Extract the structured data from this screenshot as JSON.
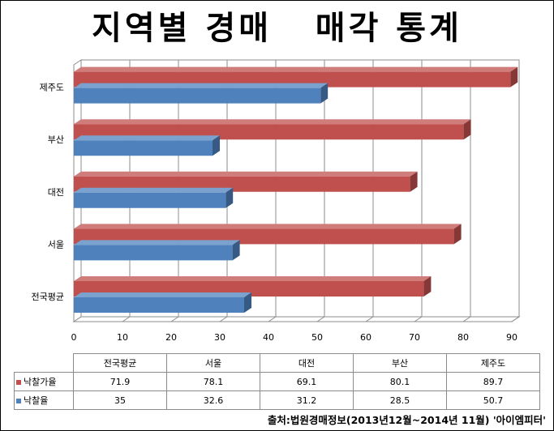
{
  "title": "지역별 경매   매각 통계",
  "source": "출처:법원경매정보(2013년12월~2014년 11월) '아이엠피터'",
  "colors": {
    "red": "#c0504d",
    "blue": "#4f81bd"
  },
  "chart_data": {
    "type": "bar",
    "orientation": "horizontal",
    "style": "3d",
    "title": "지역별 경매   매각 통계",
    "categories": [
      "전국평균",
      "서울",
      "대전",
      "부산",
      "제주도"
    ],
    "series": [
      {
        "name": "낙찰가율",
        "color": "#c0504d",
        "values": [
          71.9,
          78.1,
          69.1,
          80.1,
          89.7
        ]
      },
      {
        "name": "낙찰율",
        "color": "#4f81bd",
        "values": [
          35,
          32.6,
          31.2,
          28.5,
          50.7
        ]
      }
    ],
    "xlim": [
      0,
      90
    ],
    "xticks": [
      "0",
      "10",
      "20",
      "30",
      "40",
      "50",
      "60",
      "70",
      "80",
      "90"
    ],
    "grid": true,
    "legend": "data-table"
  },
  "table": {
    "headers": [
      "전국평균",
      "서울",
      "대전",
      "부산",
      "제주도"
    ],
    "rows": [
      {
        "label": "낙찰가율",
        "values": [
          "71.9",
          "78.1",
          "69.1",
          "80.1",
          "89.7"
        ]
      },
      {
        "label": "낙찰율",
        "values": [
          "35",
          "32.6",
          "31.2",
          "28.5",
          "50.7"
        ]
      }
    ]
  }
}
